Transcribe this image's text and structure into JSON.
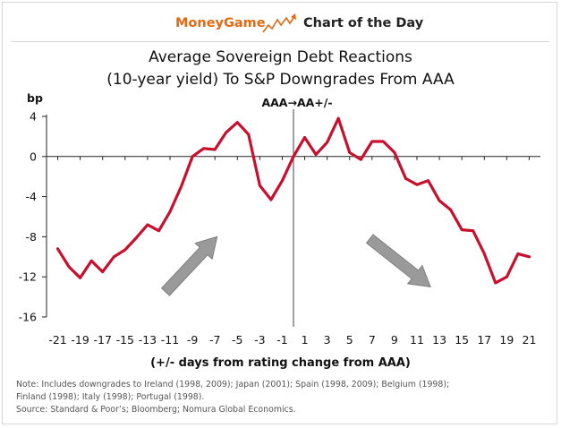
{
  "header": {
    "brand": "MoneyGame",
    "tagline": "Chart of the Day",
    "accent_color": "#e26a12",
    "icon": "rising-chart-arrow-icon"
  },
  "footer": {
    "note_lines": [
      "Note: Includes downgrades to Ireland (1998, 2009); Japan (2001); Spain (1998, 2009); Belgium (1998);",
      "Finland (1998); Italy (1998); Portugal (1998).",
      "Source: Standard & Poor’s; Bloomberg; Nomura Global Economics."
    ]
  },
  "chart_data": {
    "type": "line",
    "title_line1": "Average Sovereign Debt Reactions",
    "title_line2": "(10-year yield) To S&P Downgrades From AAA",
    "xlabel": "(+/- days from rating change from AAA)",
    "ylabel": "bp",
    "xlim": [
      -22,
      22
    ],
    "ylim": [
      -16,
      4
    ],
    "xticks": [
      -21,
      -19,
      -17,
      -15,
      -13,
      -11,
      -9,
      -7,
      -5,
      -3,
      -1,
      1,
      3,
      5,
      7,
      9,
      11,
      13,
      15,
      17,
      19,
      21
    ],
    "yticks": [
      4,
      0,
      -4,
      -8,
      -12,
      -16
    ],
    "grid": false,
    "line_color": "#c8102e",
    "annotations": [
      {
        "text": "AAA→AA+/-",
        "x": 0
      }
    ],
    "event_marker_x": 0,
    "arrows": [
      {
        "direction": "up-right",
        "from": [
          -11.4,
          -13.5
        ],
        "to": [
          -6.8,
          -8.0
        ],
        "color": "#9a9a9a"
      },
      {
        "direction": "down-right",
        "from": [
          6.8,
          -8.2
        ],
        "to": [
          12.2,
          -13.0
        ],
        "color": "#9a9a9a"
      }
    ],
    "series": [
      {
        "x": [
          -21,
          -20,
          -19,
          -18,
          -17,
          -16,
          -15,
          -14,
          -13,
          -12,
          -11,
          -10,
          -9,
          -8,
          -7,
          -6,
          -5,
          -4,
          -3,
          -2,
          -1,
          0,
          1,
          2,
          3,
          4,
          5,
          6,
          7,
          8,
          9,
          10,
          11,
          12,
          13,
          14,
          15,
          16,
          17,
          18,
          19,
          20,
          21
        ],
        "values": [
          -9.2,
          -11.0,
          -12.1,
          -10.4,
          -11.5,
          -10.0,
          -9.3,
          -8.1,
          -6.8,
          -7.4,
          -5.5,
          -3.0,
          0.0,
          0.8,
          0.7,
          2.4,
          3.4,
          2.2,
          -2.9,
          -4.3,
          -2.4,
          0.0,
          1.9,
          0.2,
          1.4,
          3.8,
          0.4,
          -0.3,
          1.5,
          1.5,
          0.4,
          -2.2,
          -2.8,
          -2.4,
          -4.4,
          -5.3,
          -7.3,
          -7.4,
          -9.7,
          -12.6,
          -12.0,
          -9.7,
          -10.0
        ]
      }
    ]
  }
}
